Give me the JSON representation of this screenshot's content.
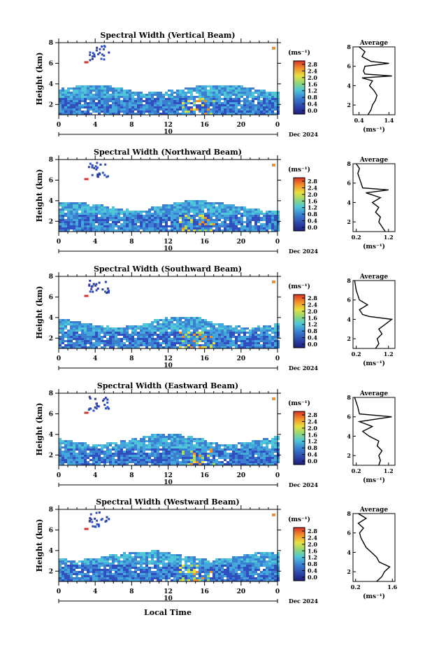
{
  "xlabel": "Local Time",
  "date_label": "Dec 2024",
  "date_day": "10",
  "ylabel": "Height (km)",
  "unit_label": "(ms⁻¹)",
  "avg_title": "Average",
  "colorbar_ticks": [
    "2.8",
    "2.4",
    "2.0",
    "1.6",
    "1.2",
    "0.8",
    "0.4",
    "0.0"
  ],
  "x_ticks": [
    "0",
    "4",
    "8",
    "12",
    "16",
    "20",
    "0"
  ],
  "y_ticks": [
    "2",
    "4",
    "6",
    "8"
  ],
  "colors": {
    "cool": "#2b3fa3",
    "mid": "#3a9ad8",
    "cyan": "#4fc7d8",
    "warm": "#e8402a"
  },
  "chart_data": [
    {
      "type": "heatmap",
      "title": "Spectral Width (Vertical Beam)",
      "xlabel": "Local Time",
      "ylabel": "Height (km)",
      "xlim": [
        0,
        24
      ],
      "ylim": [
        1,
        8
      ],
      "clim": [
        0,
        2.8
      ],
      "average": {
        "title": "Average",
        "xlabel": "(ms⁻¹)",
        "xticks": [
          "0.4",
          "1.4"
        ],
        "xlim": [
          0.2,
          1.6
        ],
        "profile": [
          [
            1.0,
            0.7
          ],
          [
            1.5,
            0.8
          ],
          [
            2.0,
            0.85
          ],
          [
            2.5,
            0.95
          ],
          [
            3.0,
            1.0
          ],
          [
            3.5,
            0.9
          ],
          [
            4.0,
            0.75
          ],
          [
            4.5,
            0.85
          ],
          [
            4.8,
            0.5
          ],
          [
            5.0,
            1.5
          ],
          [
            5.2,
            0.6
          ],
          [
            5.5,
            0.55
          ],
          [
            6.0,
            0.6
          ],
          [
            6.3,
            1.4
          ],
          [
            6.5,
            0.8
          ],
          [
            7.0,
            0.5
          ],
          [
            7.5,
            0.6
          ],
          [
            8.0,
            0.4
          ]
        ]
      }
    },
    {
      "type": "heatmap",
      "title": "Spectral Width (Northward Beam)",
      "xlabel": "Local Time",
      "ylabel": "Height (km)",
      "xlim": [
        0,
        24
      ],
      "ylim": [
        1,
        8
      ],
      "clim": [
        0,
        2.8
      ],
      "average": {
        "title": "Average",
        "xlabel": "(ms⁻¹)",
        "xticks": [
          "0.2",
          "1.2"
        ],
        "xlim": [
          0.1,
          1.4
        ],
        "profile": [
          [
            1.0,
            1.1
          ],
          [
            1.5,
            1.0
          ],
          [
            2.0,
            0.9
          ],
          [
            2.5,
            0.95
          ],
          [
            3.0,
            0.8
          ],
          [
            3.5,
            0.9
          ],
          [
            4.0,
            0.7
          ],
          [
            4.5,
            0.95
          ],
          [
            5.0,
            0.5
          ],
          [
            5.3,
            1.2
          ],
          [
            5.5,
            0.4
          ],
          [
            6.0,
            0.35
          ],
          [
            6.5,
            0.3
          ],
          [
            7.0,
            0.25
          ],
          [
            7.5,
            0.3
          ],
          [
            8.0,
            0.2
          ]
        ]
      }
    },
    {
      "type": "heatmap",
      "title": "Spectral Width (Southward Beam)",
      "xlabel": "Local Time",
      "ylabel": "Height (km)",
      "xlim": [
        0,
        24
      ],
      "ylim": [
        1,
        8
      ],
      "clim": [
        0,
        2.8
      ],
      "average": {
        "title": "Average",
        "xlabel": "(ms⁻¹)",
        "xticks": [
          "0.2",
          "1.2"
        ],
        "xlim": [
          0.1,
          1.4
        ],
        "profile": [
          [
            1.0,
            0.8
          ],
          [
            1.5,
            0.9
          ],
          [
            2.0,
            0.85
          ],
          [
            2.5,
            1.0
          ],
          [
            3.0,
            0.9
          ],
          [
            3.5,
            1.1
          ],
          [
            4.0,
            1.3
          ],
          [
            4.3,
            0.6
          ],
          [
            4.5,
            0.4
          ],
          [
            5.0,
            0.3
          ],
          [
            5.5,
            0.55
          ],
          [
            6.0,
            0.3
          ],
          [
            6.5,
            0.25
          ],
          [
            7.0,
            0.2
          ],
          [
            8.0,
            0.15
          ]
        ]
      }
    },
    {
      "type": "heatmap",
      "title": "Spectral Width (Eastward Beam)",
      "xlabel": "Local Time",
      "ylabel": "Height (km)",
      "xlim": [
        0,
        24
      ],
      "ylim": [
        1,
        8
      ],
      "clim": [
        0,
        2.8
      ],
      "average": {
        "title": "Average",
        "xlabel": "(ms⁻¹)",
        "xticks": [
          "0.2",
          "1.2"
        ],
        "xlim": [
          0.1,
          1.4
        ],
        "profile": [
          [
            1.0,
            0.9
          ],
          [
            1.5,
            0.95
          ],
          [
            2.0,
            0.9
          ],
          [
            2.5,
            1.0
          ],
          [
            3.0,
            0.85
          ],
          [
            3.5,
            0.9
          ],
          [
            4.0,
            0.6
          ],
          [
            4.5,
            0.4
          ],
          [
            5.0,
            0.7
          ],
          [
            5.5,
            0.3
          ],
          [
            6.0,
            1.3
          ],
          [
            6.3,
            0.3
          ],
          [
            7.0,
            0.25
          ],
          [
            7.5,
            0.2
          ],
          [
            8.0,
            0.15
          ]
        ]
      }
    },
    {
      "type": "heatmap",
      "title": "Spectral Width (Westward Beam)",
      "xlabel": "Local Time",
      "ylabel": "Height (km)",
      "xlim": [
        0,
        24
      ],
      "ylim": [
        1,
        8
      ],
      "clim": [
        0,
        2.8
      ],
      "average": {
        "title": "Average",
        "xlabel": "(ms⁻¹)",
        "xticks": [
          "0.2",
          "1.6"
        ],
        "xlim": [
          0.1,
          1.7
        ],
        "profile": [
          [
            1.0,
            1.0
          ],
          [
            1.5,
            1.2
          ],
          [
            2.0,
            1.3
          ],
          [
            2.5,
            1.5
          ],
          [
            3.0,
            1.1
          ],
          [
            3.5,
            1.0
          ],
          [
            4.0,
            0.8
          ],
          [
            4.5,
            0.6
          ],
          [
            5.0,
            0.5
          ],
          [
            5.5,
            0.4
          ],
          [
            6.0,
            0.35
          ],
          [
            6.5,
            0.5
          ],
          [
            7.0,
            0.3
          ],
          [
            7.5,
            0.6
          ],
          [
            8.0,
            0.3
          ]
        ]
      }
    }
  ]
}
